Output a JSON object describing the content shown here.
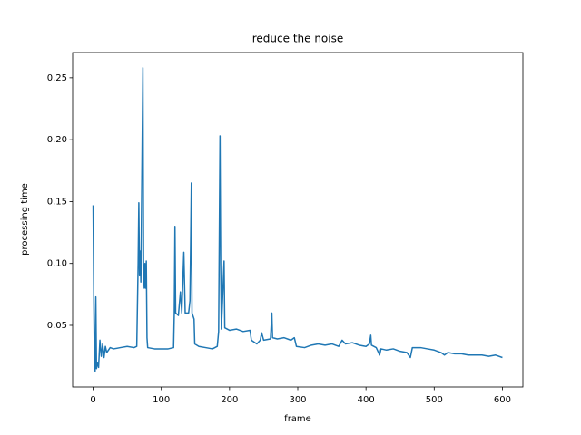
{
  "chart_data": {
    "type": "line",
    "title": "reduce the noise",
    "x_label": "frame",
    "y_label": "processing time",
    "series": [
      {
        "color": "#1f77b4",
        "x": [
          0,
          1,
          2,
          3,
          4,
          5,
          6,
          8,
          10,
          12,
          14,
          16,
          18,
          20,
          25,
          30,
          40,
          50,
          60,
          64,
          66,
          67,
          68,
          69,
          70,
          72,
          73,
          74,
          75,
          76,
          77,
          78,
          79,
          80,
          90,
          100,
          110,
          118,
          119,
          120,
          121,
          125,
          128,
          130,
          133,
          135,
          140,
          142,
          144,
          145,
          148,
          149,
          155,
          165,
          175,
          182,
          184,
          186,
          187,
          188,
          192,
          193,
          200,
          210,
          220,
          230,
          232,
          240,
          245,
          247,
          250,
          260,
          262,
          263,
          270,
          280,
          290,
          295,
          298,
          310,
          320,
          330,
          340,
          350,
          360,
          365,
          370,
          380,
          390,
          400,
          405,
          407,
          408,
          415,
          420,
          422,
          430,
          440,
          450,
          460,
          465,
          468,
          480,
          490,
          500,
          510,
          515,
          520,
          530,
          540,
          550,
          560,
          570,
          580,
          590,
          600
        ],
        "values": [
          0.147,
          0.07,
          0.02,
          0.013,
          0.073,
          0.015,
          0.02,
          0.016,
          0.038,
          0.025,
          0.035,
          0.024,
          0.033,
          0.028,
          0.032,
          0.031,
          0.032,
          0.033,
          0.032,
          0.033,
          0.1,
          0.149,
          0.09,
          0.11,
          0.085,
          0.2,
          0.258,
          0.09,
          0.08,
          0.1,
          0.08,
          0.102,
          0.04,
          0.032,
          0.031,
          0.031,
          0.031,
          0.032,
          0.06,
          0.13,
          0.06,
          0.058,
          0.077,
          0.06,
          0.109,
          0.06,
          0.06,
          0.07,
          0.165,
          0.06,
          0.055,
          0.035,
          0.033,
          0.032,
          0.031,
          0.033,
          0.045,
          0.203,
          0.1,
          0.047,
          0.102,
          0.048,
          0.046,
          0.047,
          0.045,
          0.046,
          0.038,
          0.035,
          0.038,
          0.044,
          0.038,
          0.039,
          0.06,
          0.04,
          0.039,
          0.04,
          0.038,
          0.04,
          0.033,
          0.032,
          0.034,
          0.035,
          0.034,
          0.035,
          0.033,
          0.038,
          0.035,
          0.036,
          0.034,
          0.033,
          0.035,
          0.042,
          0.034,
          0.032,
          0.026,
          0.031,
          0.03,
          0.031,
          0.029,
          0.028,
          0.024,
          0.032,
          0.032,
          0.031,
          0.03,
          0.028,
          0.026,
          0.028,
          0.027,
          0.027,
          0.026,
          0.026,
          0.026,
          0.025,
          0.026,
          0.024
        ]
      }
    ],
    "xlim": [
      -30,
      630
    ],
    "ylim": [
      0.0002,
      0.2704
    ],
    "xticks": [
      0,
      100,
      200,
      300,
      400,
      500,
      600
    ],
    "yticks": [
      0.05,
      {
        "value": 0.1,
        "label": "0.10"
      },
      0.15,
      {
        "value": 0.2,
        "label": "0.20"
      },
      0.25
    ]
  }
}
